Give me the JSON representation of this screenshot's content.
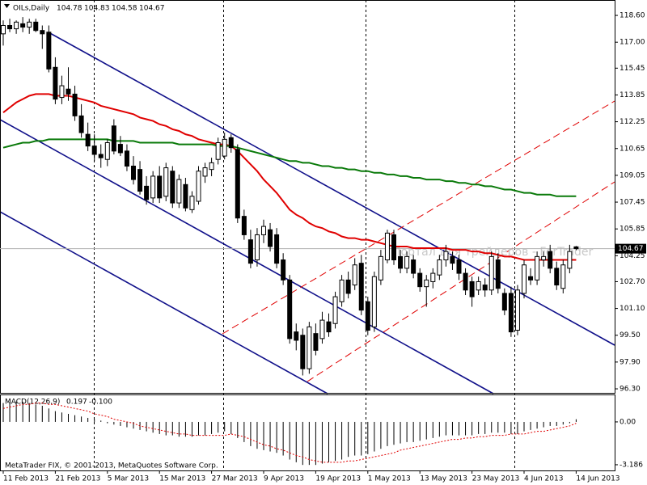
{
  "chart_data": {
    "type": "candlestick",
    "title": "OILs,Daily",
    "header_ohlc": [
      104.78,
      104.83,
      104.58,
      104.67
    ],
    "current_price": 104.67,
    "watermark": "Портал для трейдеров - ForTrader",
    "copyright": "MetaTrader FIX, © 2001-2013, MetaQuotes Software Corp.",
    "categories": [
      "11 Feb 2013",
      null,
      null,
      null,
      null,
      null,
      null,
      null,
      "21 Feb 2013",
      null,
      null,
      null,
      null,
      null,
      null,
      null,
      "5 Mar 2013",
      null,
      null,
      null,
      null,
      null,
      null,
      null,
      "15 Mar 2013",
      null,
      null,
      null,
      null,
      null,
      null,
      null,
      "27 Mar 2013",
      null,
      null,
      null,
      null,
      null,
      null,
      null,
      "9 Apr 2013",
      null,
      null,
      null,
      null,
      null,
      null,
      null,
      "19 Apr 2013",
      null,
      null,
      null,
      null,
      null,
      null,
      null,
      "1 May 2013",
      null,
      null,
      null,
      null,
      null,
      null,
      null,
      "13 May 2013",
      null,
      null,
      null,
      null,
      null,
      null,
      null,
      "23 May 2013",
      null,
      null,
      null,
      null,
      null,
      null,
      null,
      "4 Jun 2013",
      null,
      null,
      null,
      null,
      null,
      null,
      null,
      "14 Jun 2013"
    ],
    "ohlc": [
      [
        117.5,
        118.3,
        116.8,
        118.0
      ],
      [
        118.0,
        118.4,
        117.6,
        117.8
      ],
      [
        117.8,
        118.3,
        117.5,
        118.2
      ],
      [
        118.1,
        118.5,
        117.6,
        117.9
      ],
      [
        117.9,
        118.4,
        117.5,
        118.2
      ],
      [
        118.2,
        118.4,
        117.6,
        117.7
      ],
      [
        117.7,
        118.0,
        116.6,
        117.5
      ],
      [
        117.6,
        118.0,
        115.2,
        115.4
      ],
      [
        115.5,
        116.1,
        113.3,
        113.6
      ],
      [
        113.7,
        115.0,
        113.3,
        114.4
      ],
      [
        114.2,
        115.5,
        113.5,
        113.9
      ],
      [
        113.9,
        114.4,
        112.3,
        112.6
      ],
      [
        112.6,
        113.3,
        111.3,
        111.6
      ],
      [
        111.5,
        112.2,
        110.5,
        110.8
      ],
      [
        110.8,
        111.5,
        109.9,
        110.3
      ],
      [
        110.3,
        110.9,
        109.5,
        110.1
      ],
      [
        110.0,
        111.2,
        109.6,
        111.0
      ],
      [
        112.0,
        112.4,
        110.3,
        110.5
      ],
      [
        110.9,
        111.4,
        110.2,
        110.4
      ],
      [
        110.5,
        110.9,
        109.3,
        109.6
      ],
      [
        109.6,
        110.2,
        108.5,
        108.8
      ],
      [
        109.4,
        109.9,
        107.9,
        108.1
      ],
      [
        108.4,
        109.0,
        107.3,
        107.6
      ],
      [
        107.7,
        109.3,
        107.4,
        109.0
      ],
      [
        109.0,
        109.6,
        107.4,
        107.7
      ],
      [
        107.8,
        109.8,
        107.5,
        109.5
      ],
      [
        109.3,
        109.6,
        107.1,
        107.4
      ],
      [
        107.4,
        109.1,
        107.1,
        108.8
      ],
      [
        108.5,
        108.9,
        106.9,
        107.1
      ],
      [
        107.0,
        108.1,
        106.8,
        107.8
      ],
      [
        107.5,
        109.6,
        107.3,
        109.3
      ],
      [
        109.0,
        109.8,
        108.6,
        109.5
      ],
      [
        109.4,
        110.1,
        109.0,
        109.8
      ],
      [
        110.0,
        111.3,
        109.7,
        111.0
      ],
      [
        110.2,
        111.6,
        110.0,
        111.2
      ],
      [
        111.3,
        111.5,
        110.4,
        110.7
      ],
      [
        110.6,
        110.9,
        106.2,
        106.5
      ],
      [
        106.6,
        107.0,
        105.2,
        105.5
      ],
      [
        105.2,
        105.8,
        103.5,
        103.8
      ],
      [
        104.0,
        105.9,
        103.6,
        105.5
      ],
      [
        105.5,
        106.4,
        105.0,
        106.0
      ],
      [
        105.8,
        106.2,
        104.5,
        104.8
      ],
      [
        105.5,
        105.9,
        103.5,
        103.8
      ],
      [
        104.0,
        104.4,
        102.5,
        102.8
      ],
      [
        102.8,
        103.1,
        99.0,
        99.3
      ],
      [
        99.7,
        100.2,
        98.6,
        99.2
      ],
      [
        99.5,
        99.9,
        97.1,
        97.5
      ],
      [
        97.5,
        100.3,
        97.2,
        100.0
      ],
      [
        99.6,
        100.2,
        98.3,
        98.6
      ],
      [
        99.3,
        100.9,
        99.0,
        100.4
      ],
      [
        100.3,
        100.8,
        99.4,
        99.7
      ],
      [
        100.2,
        102.1,
        99.9,
        101.8
      ],
      [
        101.5,
        103.1,
        101.2,
        102.8
      ],
      [
        102.8,
        103.3,
        101.7,
        102.0
      ],
      [
        102.5,
        104.1,
        102.2,
        103.7
      ],
      [
        103.8,
        104.3,
        100.7,
        101.0
      ],
      [
        101.5,
        101.8,
        99.5,
        99.8
      ],
      [
        100.0,
        103.3,
        99.7,
        103.0
      ],
      [
        102.8,
        104.6,
        102.5,
        104.2
      ],
      [
        104.0,
        105.8,
        103.8,
        105.6
      ],
      [
        105.5,
        105.8,
        103.7,
        104.0
      ],
      [
        104.2,
        104.6,
        103.2,
        103.5
      ],
      [
        103.5,
        104.5,
        103.2,
        104.2
      ],
      [
        104.0,
        104.3,
        102.9,
        103.2
      ],
      [
        103.2,
        103.5,
        102.1,
        102.4
      ],
      [
        102.4,
        103.1,
        101.2,
        102.8
      ],
      [
        102.7,
        103.5,
        102.3,
        103.2
      ],
      [
        103.1,
        104.3,
        102.8,
        104.0
      ],
      [
        104.0,
        104.9,
        103.6,
        104.5
      ],
      [
        104.2,
        104.5,
        103.4,
        103.8
      ],
      [
        104.0,
        104.3,
        102.8,
        103.2
      ],
      [
        103.2,
        103.5,
        101.9,
        102.2
      ],
      [
        102.7,
        103.0,
        101.2,
        101.8
      ],
      [
        102.2,
        103.0,
        101.9,
        102.7
      ],
      [
        102.5,
        102.9,
        101.8,
        102.2
      ],
      [
        102.2,
        104.5,
        101.9,
        104.2
      ],
      [
        104.0,
        104.4,
        102.0,
        102.3
      ],
      [
        102.0,
        102.3,
        100.7,
        101.0
      ],
      [
        102.0,
        102.4,
        99.4,
        99.7
      ],
      [
        99.8,
        102.5,
        99.5,
        102.2
      ],
      [
        102.0,
        104.0,
        101.7,
        103.7
      ],
      [
        103.0,
        103.5,
        102.5,
        102.8
      ],
      [
        102.8,
        104.5,
        102.5,
        104.2
      ],
      [
        104.0,
        104.5,
        103.6,
        104.2
      ],
      [
        104.5,
        104.9,
        103.2,
        103.5
      ],
      [
        103.5,
        103.9,
        102.2,
        102.5
      ],
      [
        102.3,
        104.0,
        102.0,
        103.7
      ],
      [
        103.5,
        104.9,
        103.2,
        104.5
      ],
      [
        104.78,
        104.83,
        104.58,
        104.67
      ]
    ],
    "series": [
      {
        "color": "#e00000",
        "values": [
          112.8,
          113.1,
          113.4,
          113.6,
          113.8,
          113.9,
          113.9,
          113.9,
          113.8,
          113.8,
          113.8,
          113.7,
          113.6,
          113.5,
          113.4,
          113.2,
          113.1,
          113.0,
          112.9,
          112.8,
          112.7,
          112.5,
          112.4,
          112.3,
          112.1,
          112.0,
          111.8,
          111.7,
          111.5,
          111.4,
          111.2,
          111.1,
          111.0,
          110.9,
          110.9,
          110.8,
          110.5,
          110.1,
          109.7,
          109.3,
          108.8,
          108.4,
          108.0,
          107.5,
          107.0,
          106.7,
          106.5,
          106.2,
          106.0,
          105.9,
          105.7,
          105.6,
          105.4,
          105.3,
          105.3,
          105.2,
          105.2,
          105.1,
          105.0,
          104.9,
          104.8,
          104.8,
          104.8,
          104.7,
          104.7,
          104.7,
          104.7,
          104.7,
          104.7,
          104.6,
          104.6,
          104.6,
          104.5,
          104.5,
          104.4,
          104.4,
          104.3,
          104.2,
          104.2,
          104.1,
          104.0,
          104.0,
          104.0,
          104.0,
          104.0,
          104.0,
          104.0,
          104.0,
          104.0
        ]
      },
      {
        "color": "#0a7a0a",
        "values": [
          110.7,
          110.8,
          110.9,
          111.0,
          111.0,
          111.1,
          111.1,
          111.2,
          111.2,
          111.2,
          111.2,
          111.2,
          111.2,
          111.2,
          111.2,
          111.2,
          111.2,
          111.1,
          111.1,
          111.1,
          111.1,
          111.0,
          111.0,
          111.0,
          111.0,
          111.0,
          111.0,
          110.9,
          110.9,
          110.9,
          110.9,
          110.9,
          110.9,
          110.8,
          110.8,
          110.8,
          110.7,
          110.6,
          110.5,
          110.4,
          110.3,
          110.2,
          110.1,
          110.0,
          109.9,
          109.9,
          109.8,
          109.8,
          109.7,
          109.6,
          109.6,
          109.5,
          109.5,
          109.4,
          109.4,
          109.3,
          109.3,
          109.2,
          109.2,
          109.1,
          109.1,
          109.0,
          109.0,
          108.9,
          108.9,
          108.8,
          108.8,
          108.8,
          108.7,
          108.7,
          108.6,
          108.6,
          108.5,
          108.5,
          108.4,
          108.4,
          108.3,
          108.2,
          108.2,
          108.1,
          108.0,
          108.0,
          107.9,
          107.9,
          107.9,
          107.8,
          107.8,
          107.8,
          107.8
        ]
      }
    ],
    "ylim": [
      96.06,
      119.52
    ],
    "yticks": [
      {
        "value": 118.6,
        "label": "118.60"
      },
      {
        "value": 117,
        "label": "117.00"
      },
      115.45,
      113.85,
      112.25,
      110.65,
      109.05,
      107.45,
      105.85,
      104.25,
      {
        "value": 102.7,
        "label": "102.70"
      },
      {
        "value": 101.1,
        "label": "101.10"
      },
      {
        "value": 99.5,
        "label": "99.50"
      },
      {
        "value": 97.9,
        "label": "97.90"
      },
      {
        "value": 96.3,
        "label": "96.30"
      }
    ],
    "macd": {
      "name": "MACD(12,26,9)",
      "main": 0.197,
      "signal_value": {
        "value": -0.1,
        "label": "-0.100"
      },
      "signal_color": "#e00000",
      "histogram": [
        1.4,
        1.5,
        1.5,
        1.5,
        1.4,
        1.3,
        1.2,
        1.0,
        0.8,
        0.7,
        0.6,
        0.5,
        0.4,
        0.3,
        0.2,
        0.1,
        -0.1,
        -0.2,
        -0.3,
        -0.4,
        -0.5,
        -0.6,
        -0.7,
        -0.8,
        -0.9,
        -1.0,
        -1.0,
        -1.1,
        -1.1,
        -1.1,
        -1.0,
        -1.0,
        -0.9,
        -0.8,
        -0.7,
        -0.9,
        -1.2,
        -1.5,
        -1.8,
        -2.0,
        -2.1,
        -2.2,
        -2.3,
        -2.5,
        -2.8,
        -3.0,
        -3.2,
        -3.2,
        -3.2,
        -3.1,
        -3.0,
        -2.9,
        -2.8,
        -2.6,
        -2.5,
        -2.5,
        -2.4,
        -2.2,
        -2.0,
        -1.8,
        -1.7,
        -1.6,
        -1.5,
        -1.5,
        -1.4,
        -1.3,
        -1.2,
        -1.1,
        -1.0,
        -1.0,
        -1.0,
        -1.0,
        -1.0,
        -0.9,
        -0.9,
        -0.8,
        -0.8,
        -0.8,
        -0.9,
        -0.9,
        -0.7,
        -0.6,
        -0.5,
        -0.4,
        -0.3,
        -0.3,
        -0.2,
        -0.1,
        0.197
      ],
      "signal": [
        1.0,
        1.1,
        1.2,
        1.3,
        1.3,
        1.4,
        1.4,
        1.3,
        1.3,
        1.2,
        1.1,
        1.0,
        0.9,
        0.8,
        0.6,
        0.5,
        0.4,
        0.2,
        0.1,
        0.0,
        -0.1,
        -0.3,
        -0.4,
        -0.5,
        -0.6,
        -0.7,
        -0.8,
        -0.9,
        -0.9,
        -1.0,
        -1.0,
        -1.0,
        -1.0,
        -1.0,
        -1.0,
        -0.9,
        -1.0,
        -1.1,
        -1.3,
        -1.5,
        -1.7,
        -1.8,
        -2.0,
        -2.1,
        -2.3,
        -2.5,
        -2.6,
        -2.8,
        -2.9,
        -3.0,
        -3.0,
        -3.0,
        -3.0,
        -2.9,
        -2.9,
        -2.8,
        -2.7,
        -2.6,
        -2.5,
        -2.4,
        -2.3,
        -2.1,
        -2.0,
        -1.9,
        -1.8,
        -1.7,
        -1.6,
        -1.5,
        -1.4,
        -1.3,
        -1.3,
        -1.2,
        -1.2,
        -1.1,
        -1.1,
        -1.0,
        -1.0,
        -1.0,
        -0.9,
        -0.9,
        -0.9,
        -0.8,
        -0.7,
        -0.7,
        -0.6,
        -0.5,
        -0.4,
        -0.3,
        -0.1
      ],
      "ylim": [
        -3.61,
        2.04
      ],
      "yticks": [
        {
          "value": 0,
          "label": "0.00"
        },
        -3.186
      ]
    }
  }
}
